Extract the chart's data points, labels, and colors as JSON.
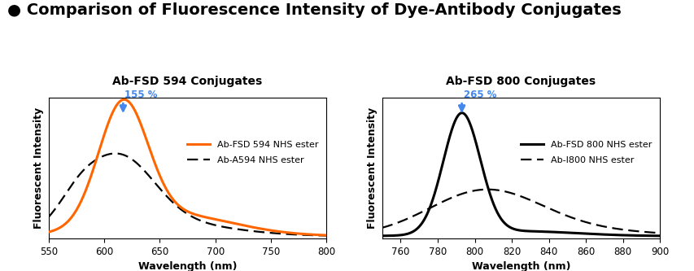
{
  "title": "● Comparison of Fluorescence Intensity of Dye-Antibody Conjugates",
  "title_fontsize": 14,
  "title_fontweight": "bold",
  "plot1": {
    "title": "Ab-FSD 594 Conjugates",
    "xlabel": "Wavelength (nm)",
    "ylabel": "Fluorescent Intensity",
    "xmin": 550,
    "xmax": 800,
    "peak_nm": 617,
    "annotation_pct": "155 %",
    "annotation_color": "#4488ee",
    "line1_color": "#FF6600",
    "line1_label": "Ab-FSD 594 NHS ester",
    "line2_label": "Ab-A594 NHS ester"
  },
  "plot2": {
    "title": "Ab-FSD 800 Conjugates",
    "xlabel": "Wavelength (nm)",
    "ylabel": "Fluorescent Intensity",
    "xmin": 750,
    "xmax": 900,
    "peak_nm": 793,
    "annotation_pct": "265 %",
    "annotation_color": "#4488ee",
    "line1_color": "#000000",
    "line1_label": "Ab-FSD 800 NHS ester",
    "line2_label": "Ab-I800 NHS ester"
  },
  "background_color": "#ffffff"
}
